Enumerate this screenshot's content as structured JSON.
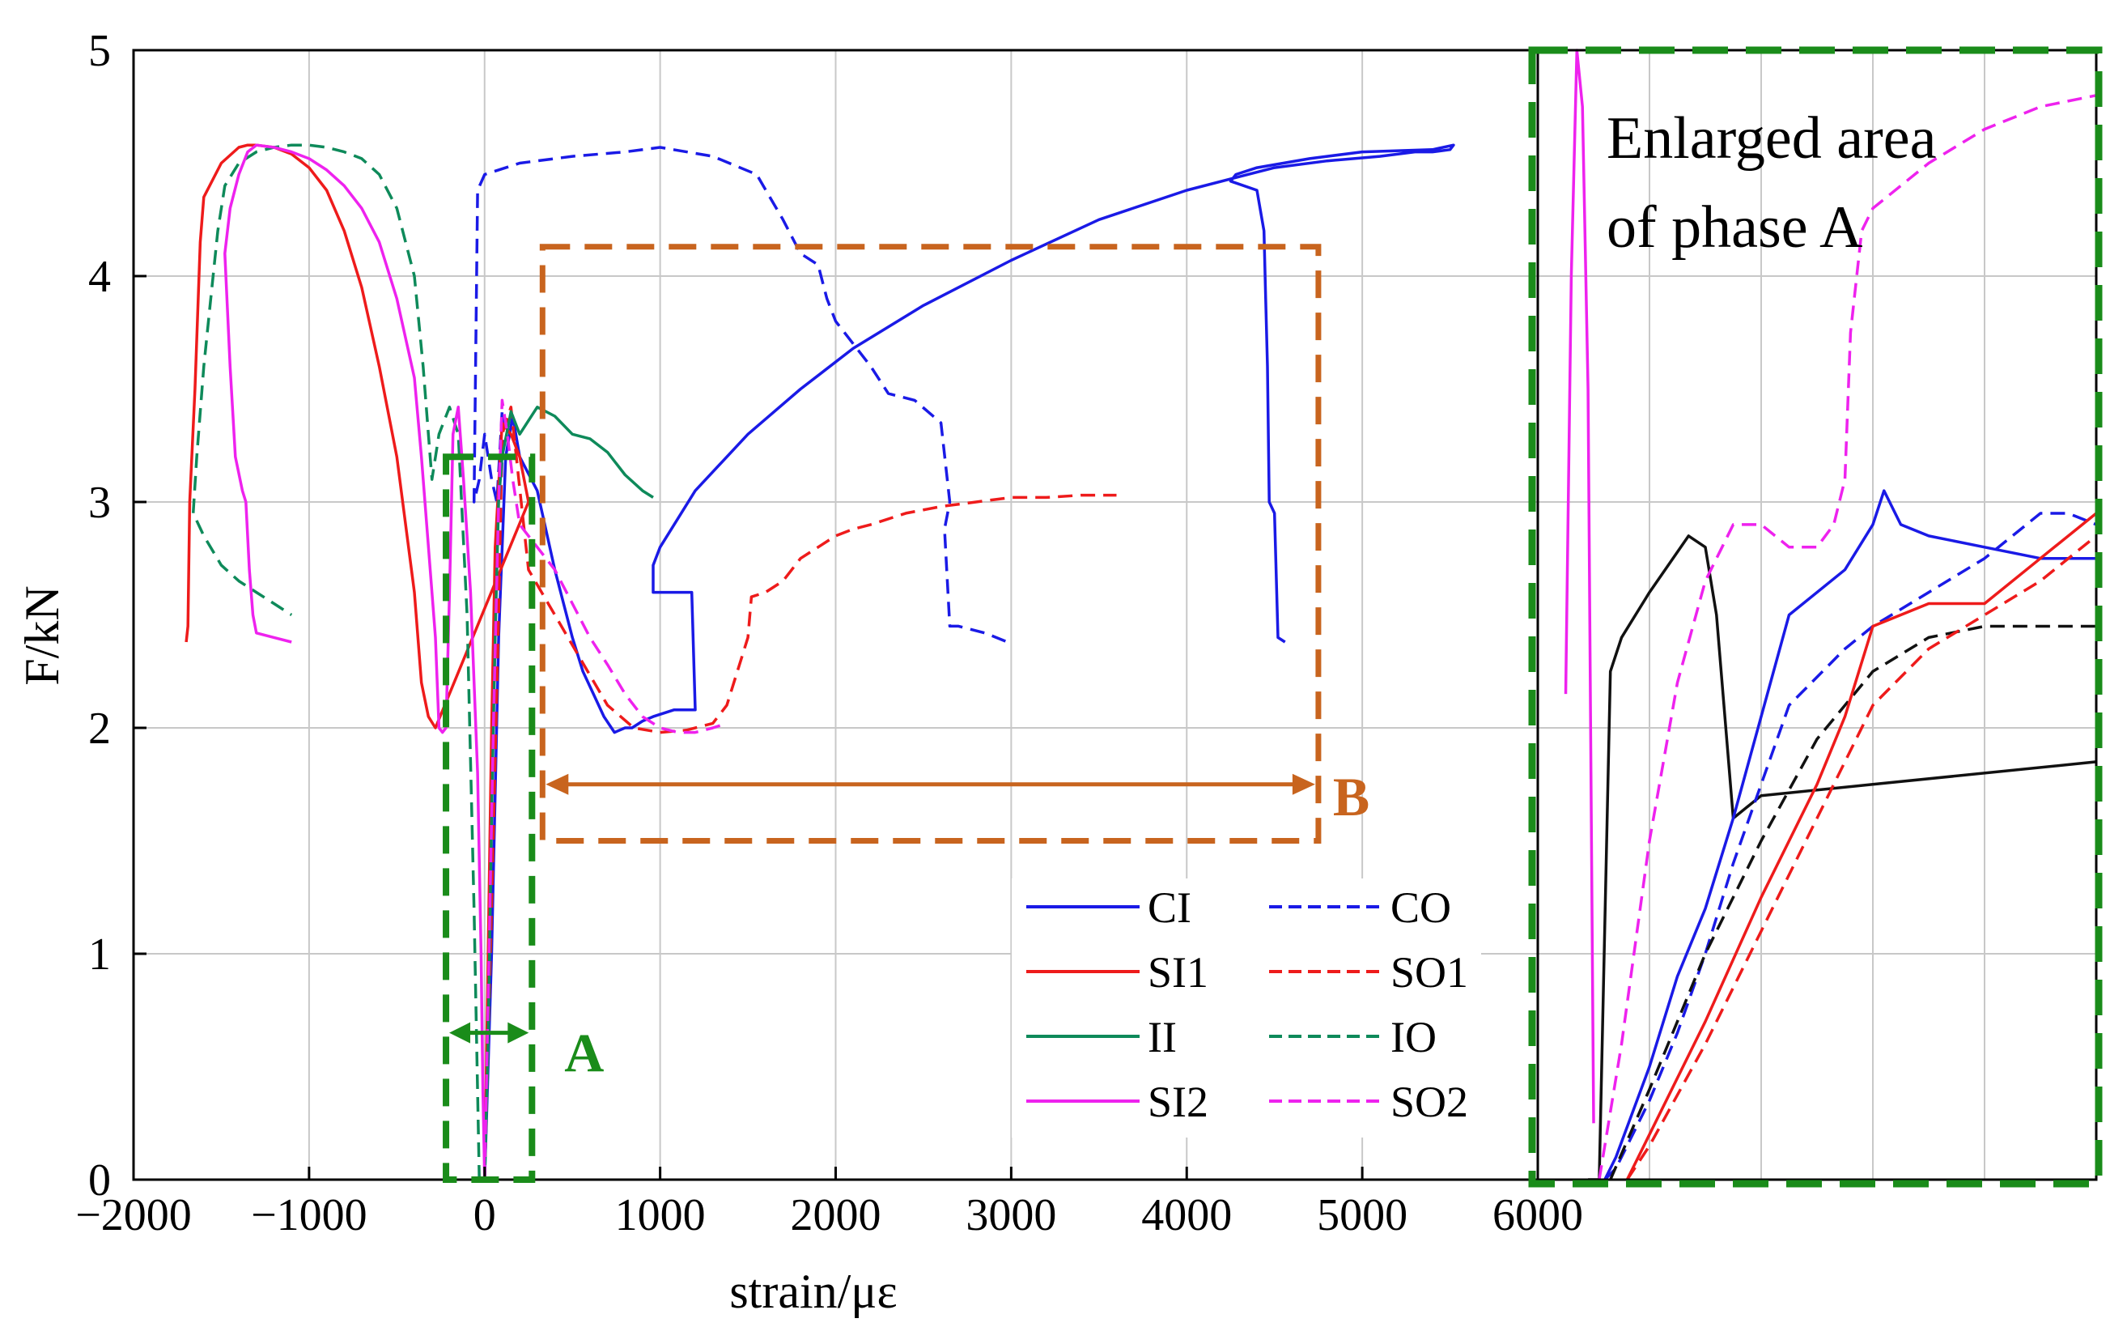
{
  "colors": {
    "CI": "#1a1ae6",
    "CO": "#1a1ae6",
    "SI1": "#ee1b1b",
    "SO1": "#ee1b1b",
    "II": "#0e8a5a",
    "IO": "#0e8a5a",
    "SI2": "#ee22ee",
    "SO2": "#ee22ee",
    "black": "#111111",
    "phaseA": "#1a8c1a",
    "phaseB": "#c8641e",
    "grid": "#c8c8c8"
  },
  "chart_data": {
    "type": "line",
    "xlabel": "strain/με",
    "ylabel": "F/kN",
    "xlim": [
      -2000,
      6000
    ],
    "ylim": [
      0,
      5
    ],
    "xticks": [
      -2000,
      -1000,
      0,
      1000,
      2000,
      3000,
      4000,
      5000,
      6000
    ],
    "xtick_labels": [
      "−2000",
      "−1000",
      "0",
      "1000",
      "2000",
      "3000",
      "4000",
      "5000",
      "6000"
    ],
    "yticks": [
      0,
      1,
      2,
      3,
      4,
      5
    ],
    "ytick_labels": [
      "0",
      "1",
      "2",
      "3",
      "4",
      "5"
    ],
    "grid": true,
    "legend_position": "bottom-right",
    "series": [
      {
        "name": "CI",
        "style": "solid",
        "color_key": "CI",
        "x": [
          0,
          40,
          80,
          120,
          160,
          200,
          300,
          400,
          500,
          560,
          620,
          680,
          740,
          800,
          840,
          880,
          900,
          960,
          1080,
          1200,
          1180,
          960,
          960,
          1000,
          1200,
          1500,
          1800,
          2100,
          2500,
          3000,
          3500,
          4000,
          4300,
          4500,
          4800,
          5100,
          5300,
          5400,
          5500,
          5520,
          5400,
          5000,
          4700,
          4400,
          4280,
          4250,
          4400,
          4440,
          4450,
          4460,
          4470,
          4500,
          4520,
          4560
        ],
        "y": [
          0,
          1.0,
          2.4,
          3.2,
          3.38,
          3.2,
          3.05,
          2.7,
          2.4,
          2.25,
          2.15,
          2.05,
          1.98,
          2.0,
          2.0,
          2.02,
          2.03,
          2.05,
          2.08,
          2.08,
          2.6,
          2.6,
          2.72,
          2.8,
          3.05,
          3.3,
          3.5,
          3.68,
          3.87,
          4.07,
          4.25,
          4.38,
          4.44,
          4.48,
          4.51,
          4.53,
          4.55,
          4.55,
          4.56,
          4.58,
          4.56,
          4.55,
          4.52,
          4.48,
          4.45,
          4.42,
          4.38,
          4.2,
          3.9,
          3.6,
          3.0,
          2.95,
          2.4,
          2.38
        ]
      },
      {
        "name": "CO",
        "style": "dashed",
        "color_key": "CO",
        "x": [
          0,
          40,
          80,
          110,
          100,
          70,
          40,
          0,
          -30,
          -60,
          -40,
          0,
          200,
          500,
          800,
          1000,
          1300,
          1550,
          1700,
          1800,
          1900,
          1950,
          2000,
          2100,
          2200,
          2300,
          2450,
          2600,
          2650,
          2620,
          2650,
          2700,
          2850,
          2980
        ],
        "y": [
          0,
          1.2,
          2.8,
          3.4,
          3.4,
          3.0,
          3.1,
          3.3,
          3.1,
          3.0,
          4.38,
          4.45,
          4.5,
          4.53,
          4.55,
          4.57,
          4.53,
          4.45,
          4.25,
          4.1,
          4.05,
          3.9,
          3.8,
          3.7,
          3.6,
          3.48,
          3.45,
          3.35,
          3.0,
          2.88,
          2.45,
          2.45,
          2.42,
          2.38
        ]
      },
      {
        "name": "SI1",
        "style": "solid",
        "color_key": "SI1",
        "x": [
          0,
          20,
          40,
          60,
          100,
          150,
          200,
          250,
          -280,
          -320,
          -360,
          -400,
          -500,
          -600,
          -700,
          -800,
          -900,
          -1000,
          -1100,
          -1200,
          -1300,
          -1350,
          -1400,
          -1500,
          -1600,
          -1620,
          -1650,
          -1680,
          -1690,
          -1700
        ],
        "y": [
          0,
          1.0,
          2.0,
          2.8,
          3.35,
          3.3,
          3.2,
          3.0,
          2.0,
          2.05,
          2.2,
          2.6,
          3.2,
          3.6,
          3.95,
          4.2,
          4.38,
          4.48,
          4.54,
          4.57,
          4.58,
          4.58,
          4.57,
          4.5,
          4.35,
          4.15,
          3.5,
          3.0,
          2.45,
          2.38
        ]
      },
      {
        "name": "SO1",
        "style": "dashed",
        "color_key": "SO1",
        "x": [
          0,
          40,
          80,
          100,
          150,
          250,
          400,
          550,
          700,
          850,
          1000,
          1150,
          1300,
          1380,
          1500,
          1520,
          1600,
          1700,
          1800,
          1900,
          2000,
          2100,
          2200,
          2400,
          2600,
          2800,
          3000,
          3200,
          3400,
          3600
        ],
        "y": [
          0,
          1.2,
          2.5,
          3.3,
          3.42,
          2.7,
          2.5,
          2.3,
          2.1,
          2.0,
          1.98,
          1.99,
          2.02,
          2.1,
          2.4,
          2.58,
          2.6,
          2.65,
          2.75,
          2.8,
          2.85,
          2.88,
          2.9,
          2.95,
          2.98,
          3.0,
          3.02,
          3.02,
          3.03,
          3.03
        ]
      },
      {
        "name": "II",
        "style": "solid",
        "color_key": "II",
        "x": [
          0,
          20,
          40,
          60,
          80,
          100,
          150,
          200,
          300,
          400,
          500,
          600,
          700,
          800,
          900,
          960
        ],
        "y": [
          0,
          0.6,
          1.6,
          2.4,
          3.0,
          3.2,
          3.4,
          3.3,
          3.42,
          3.38,
          3.3,
          3.28,
          3.22,
          3.12,
          3.05,
          3.02
        ]
      },
      {
        "name": "IO",
        "style": "dashed",
        "color_key": "IO",
        "x": [
          -30,
          -60,
          -100,
          -150,
          -200,
          -260,
          -300,
          -320,
          -350,
          -400,
          -500,
          -600,
          -700,
          -800,
          -900,
          -1000,
          -1100,
          -1200,
          -1300,
          -1400,
          -1480,
          -1520,
          -1560,
          -1600,
          -1640,
          -1660,
          -1600,
          -1500,
          -1400,
          -1300,
          -1200,
          -1100
        ],
        "y": [
          0,
          1.2,
          2.5,
          3.3,
          3.42,
          3.3,
          3.1,
          3.3,
          3.6,
          4.0,
          4.3,
          4.45,
          4.52,
          4.55,
          4.57,
          4.58,
          4.58,
          4.57,
          4.55,
          4.5,
          4.4,
          4.2,
          3.9,
          3.6,
          3.2,
          2.95,
          2.85,
          2.72,
          2.65,
          2.6,
          2.55,
          2.5
        ]
      },
      {
        "name": "SI2",
        "style": "solid",
        "color_key": "SI2",
        "x": [
          0,
          -10,
          -20,
          -40,
          -80,
          -120,
          -150,
          -180,
          -200,
          -220,
          -240,
          -260,
          -280,
          -300,
          -330,
          -360,
          -400,
          -500,
          -600,
          -700,
          -800,
          -900,
          -1000,
          -1100,
          -1200,
          -1300,
          -1350,
          -1400,
          -1450,
          -1480,
          -1450,
          -1420,
          -1380,
          -1360,
          -1340,
          -1320,
          -1300,
          -1200,
          -1100
        ],
        "y": [
          0,
          0.4,
          1.0,
          1.8,
          2.6,
          3.1,
          3.42,
          3.3,
          2.6,
          2.0,
          1.98,
          2.0,
          2.4,
          2.6,
          2.9,
          3.2,
          3.55,
          3.9,
          4.15,
          4.3,
          4.4,
          4.47,
          4.52,
          4.55,
          4.57,
          4.58,
          4.55,
          4.45,
          4.3,
          4.1,
          3.6,
          3.2,
          3.05,
          3.0,
          2.7,
          2.5,
          2.42,
          2.4,
          2.38
        ]
      },
      {
        "name": "SO2",
        "style": "dashed",
        "color_key": "SO2",
        "x": [
          0,
          20,
          50,
          80,
          100,
          130,
          160,
          200,
          300,
          400,
          500,
          600,
          700,
          800,
          900,
          1000,
          1100,
          1200,
          1300,
          1380
        ],
        "y": [
          0,
          0.8,
          2.0,
          3.0,
          3.45,
          3.3,
          3.1,
          2.9,
          2.8,
          2.7,
          2.55,
          2.4,
          2.28,
          2.15,
          2.05,
          2.0,
          1.98,
          1.98,
          2.0,
          2.02
        ]
      }
    ],
    "annotations": [
      {
        "id": "phase_a",
        "label": "A",
        "x_range": [
          -220,
          270
        ],
        "y_range": [
          0,
          3.2
        ]
      },
      {
        "id": "phase_b",
        "label": "B",
        "x_range": [
          330,
          4750
        ],
        "y_range": [
          1.5,
          4.13
        ]
      }
    ],
    "inset": {
      "title_line1": "Enlarged area",
      "title_line2": "of phase A",
      "series": [
        {
          "name": "SI2",
          "style": "solid",
          "color_key": "SI2",
          "x": [
            0.05,
            0.06,
            0.07,
            0.08,
            0.09,
            0.1
          ],
          "y": [
            0.43,
            0.8,
            1.0,
            0.95,
            0.7,
            0.05
          ]
        },
        {
          "name": "black_solid",
          "style": "solid",
          "color_key": "black",
          "x": [
            0.09,
            0.11,
            0.13,
            0.15,
            0.2,
            0.27,
            0.3,
            0.32,
            0.35,
            0.4,
            0.6,
            1.0
          ],
          "y": [
            0.0,
            0.0,
            0.45,
            0.48,
            0.52,
            0.57,
            0.56,
            0.5,
            0.32,
            0.34,
            0.35,
            0.37
          ]
        },
        {
          "name": "CI",
          "style": "solid",
          "color_key": "CI",
          "x": [
            0.12,
            0.14,
            0.2,
            0.25,
            0.3,
            0.35,
            0.45,
            0.55,
            0.6,
            0.62,
            0.65,
            0.7,
            0.8,
            0.9,
            1.0
          ],
          "y": [
            0.0,
            0.02,
            0.1,
            0.18,
            0.24,
            0.32,
            0.5,
            0.54,
            0.58,
            0.61,
            0.58,
            0.57,
            0.56,
            0.55,
            0.55
          ]
        },
        {
          "name": "CO",
          "style": "dashed",
          "color_key": "CO",
          "x": [
            0.12,
            0.14,
            0.2,
            0.25,
            0.3,
            0.35,
            0.45,
            0.55,
            0.6,
            0.7,
            0.8,
            0.9,
            0.95,
            1.0
          ],
          "y": [
            0.0,
            0.01,
            0.07,
            0.13,
            0.2,
            0.28,
            0.42,
            0.47,
            0.49,
            0.52,
            0.55,
            0.59,
            0.59,
            0.58
          ]
        },
        {
          "name": "black_dashed",
          "style": "dashed",
          "color_key": "black",
          "x": [
            0.13,
            0.2,
            0.3,
            0.4,
            0.5,
            0.6,
            0.7,
            0.8,
            0.9,
            1.0
          ],
          "y": [
            0.0,
            0.08,
            0.2,
            0.3,
            0.39,
            0.45,
            0.48,
            0.49,
            0.49,
            0.49
          ]
        },
        {
          "name": "SI1",
          "style": "solid",
          "color_key": "SI1",
          "x": [
            0.16,
            0.2,
            0.3,
            0.4,
            0.5,
            0.55,
            0.6,
            0.7,
            0.8,
            0.9,
            1.0
          ],
          "y": [
            0.0,
            0.04,
            0.14,
            0.25,
            0.35,
            0.41,
            0.49,
            0.51,
            0.51,
            0.55,
            0.59
          ]
        },
        {
          "name": "SO1",
          "style": "dashed",
          "color_key": "SO1",
          "x": [
            0.16,
            0.2,
            0.3,
            0.4,
            0.5,
            0.6,
            0.7,
            0.8,
            0.9,
            1.0
          ],
          "y": [
            0.0,
            0.03,
            0.12,
            0.22,
            0.32,
            0.42,
            0.47,
            0.5,
            0.53,
            0.57
          ]
        },
        {
          "name": "SO2",
          "style": "dashed",
          "color_key": "SO2",
          "x": [
            0.11,
            0.15,
            0.2,
            0.25,
            0.3,
            0.33,
            0.35,
            0.4,
            0.45,
            0.5,
            0.53,
            0.55,
            0.56,
            0.58,
            0.6,
            0.7,
            0.8,
            0.9,
            1.0
          ],
          "y": [
            0.0,
            0.12,
            0.3,
            0.44,
            0.53,
            0.56,
            0.58,
            0.58,
            0.56,
            0.56,
            0.58,
            0.62,
            0.75,
            0.84,
            0.86,
            0.9,
            0.93,
            0.95,
            0.96
          ]
        }
      ]
    }
  }
}
